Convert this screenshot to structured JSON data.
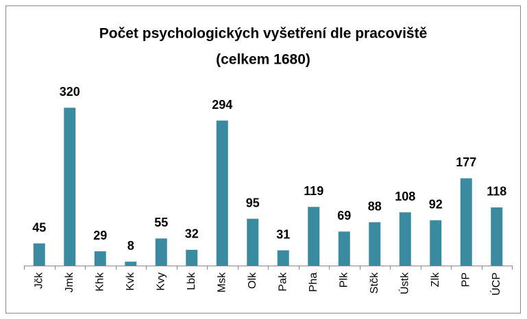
{
  "chart_data": {
    "type": "bar",
    "title": "Počet psychologických vyšetření dle pracoviště",
    "subtitle": "(celkem 1680)",
    "categories": [
      "Jčk",
      "Jmk",
      "Khk",
      "Kvk",
      "Kvy",
      "Lbk",
      "Msk",
      "Olk",
      "Pak",
      "Pha",
      "Plk",
      "Stčk",
      "Ústk",
      "Zlk",
      "PP",
      "ÚCP"
    ],
    "values": [
      45,
      320,
      29,
      8,
      55,
      32,
      294,
      95,
      31,
      119,
      69,
      88,
      108,
      92,
      177,
      118
    ],
    "color": "#3a8ba0",
    "ylim": [
      0,
      340
    ]
  }
}
